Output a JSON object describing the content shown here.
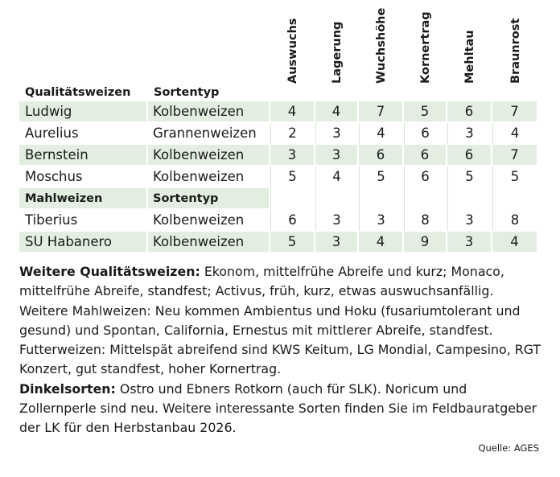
{
  "table": {
    "columns": [
      "Auswuchs",
      "Lagerung",
      "Wuchshöhe",
      "Kornertrag",
      "Mehltau",
      "Braunrost"
    ],
    "sections": [
      {
        "heading": "Qualitätsweizen",
        "type_heading": "Sortentyp",
        "rows": [
          {
            "name": "Ludwig",
            "type": "Kolbenweizen",
            "values": [
              "4",
              "4",
              "7",
              "5",
              "6",
              "7"
            ]
          },
          {
            "name": "Aurelius",
            "type": "Grannenweizen",
            "values": [
              "2",
              "3",
              "4",
              "6",
              "3",
              "4"
            ]
          },
          {
            "name": "Bernstein",
            "type": "Kolbenweizen",
            "values": [
              "3",
              "3",
              "6",
              "6",
              "6",
              "7"
            ]
          },
          {
            "name": "Moschus",
            "type": "Kolbenweizen",
            "values": [
              "5",
              "4",
              "5",
              "6",
              "5",
              "5"
            ]
          }
        ]
      },
      {
        "heading": "Mahlweizen",
        "type_heading": "Sortentyp",
        "rows": [
          {
            "name": "Tiberius",
            "type": "Kolbenweizen",
            "values": [
              "6",
              "3",
              "3",
              "8",
              "3",
              "8"
            ]
          },
          {
            "name": "SU Habanero",
            "type": "Kolbenweizen",
            "values": [
              "5",
              "3",
              "4",
              "9",
              "3",
              "4"
            ]
          }
        ]
      }
    ]
  },
  "notes": {
    "p1_label": "Weitere Qualitätsweizen:",
    "p1_text": " Ekonom, mittelfrühe Abreife und kurz; Monaco, mittelfrühe Abreife, standfest; Activus, früh, kurz, etwas auswuchsanfällig. Weitere Mahlweizen: Neu kommen Ambientus und Hoku (fusariumtolerant und gesund) und Spontan, California, Ernestus mit mittlerer Abreife, stand­fest. Futterweizen: Mittelspät abreifend sind KWS Keitum, LG Mondial, Campesino, RGT Konzert, gut standfest, hoher Kornertrag.",
    "p2_label": "Dinkelsorten:",
    "p2_text": " Ostro und Ebners Rotkorn (auch für SLK). Noricum und Zollernperle sind neu. Weitere interessante Sorten finden Sie im Feldbau­ratgeber der LK für den Herbstanbau 2026."
  },
  "source": "Quelle: AGES"
}
